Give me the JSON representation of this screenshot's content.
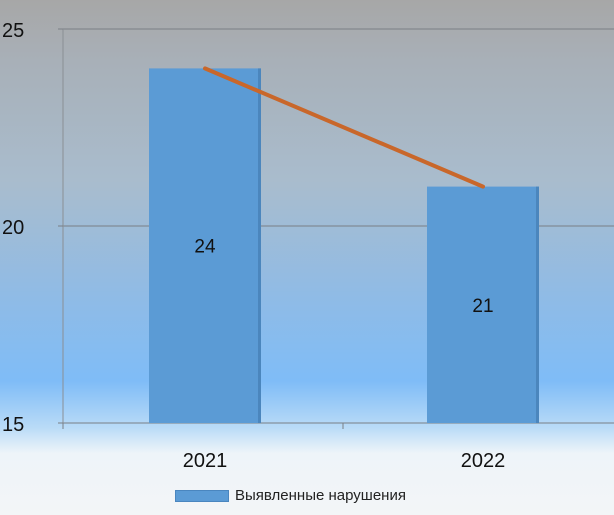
{
  "chart_data": {
    "type": "bar",
    "categories": [
      "2021",
      "2022"
    ],
    "series": [
      {
        "name": "Выявленные нарушения",
        "values": [
          24,
          21
        ],
        "color": "#5b9bd5"
      }
    ],
    "trend_line": {
      "values": [
        24,
        21
      ],
      "color": "#c9672a"
    },
    "ylim": [
      15,
      25
    ],
    "yticks": [
      "15",
      "20",
      "25"
    ],
    "data_labels": [
      "24",
      "21"
    ],
    "title": "",
    "xlabel": "",
    "ylabel": "",
    "grid": true,
    "legend_position": "bottom"
  }
}
